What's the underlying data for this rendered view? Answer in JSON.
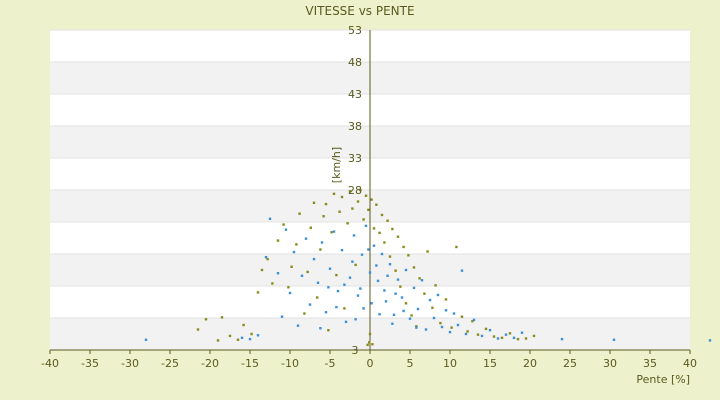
{
  "chart_data": {
    "type": "scatter",
    "title": "VITESSE vs PENTE",
    "xlabel": "Pente [%]",
    "ylabel": "[km/h]",
    "xlim": [
      -40,
      40
    ],
    "ylim": [
      3,
      53
    ],
    "xticks": [
      -40,
      -35,
      -30,
      -25,
      -20,
      -15,
      -10,
      -5,
      0,
      5,
      10,
      15,
      20,
      25,
      30,
      35,
      40
    ],
    "yticks": [
      3,
      8,
      13,
      18,
      23,
      28,
      33,
      38,
      43,
      48,
      53
    ],
    "ytick_labels": [
      "3",
      "",
      "",
      "",
      "",
      "28",
      "33",
      "38",
      "43",
      "48",
      "53"
    ],
    "grid": true,
    "legend": "none",
    "colors": {
      "background": "#eef2cc",
      "plot_background": "#ffffff",
      "band": "#f2f2f2",
      "axis": "#5a5a1e",
      "series_1": "#3b8fd8",
      "series_2": "#8a8a1a"
    },
    "series": [
      {
        "color": "#8a8a1a",
        "points": [
          [
            -21.5,
            6.2
          ],
          [
            -20.5,
            7.8
          ],
          [
            -19.0,
            4.5
          ],
          [
            -18.5,
            8.1
          ],
          [
            -17.5,
            5.2
          ],
          [
            -16.5,
            4.6
          ],
          [
            -15.8,
            6.9
          ],
          [
            -14.8,
            5.5
          ],
          [
            -14.0,
            12.0
          ],
          [
            -13.5,
            15.5
          ],
          [
            -12.8,
            17.2
          ],
          [
            -12.2,
            13.4
          ],
          [
            -11.5,
            20.1
          ],
          [
            -10.8,
            22.6
          ],
          [
            -10.2,
            12.8
          ],
          [
            -9.8,
            16.0
          ],
          [
            -9.2,
            19.5
          ],
          [
            -8.8,
            24.3
          ],
          [
            -8.2,
            8.7
          ],
          [
            -7.8,
            15.2
          ],
          [
            -7.4,
            22.1
          ],
          [
            -7.0,
            26.0
          ],
          [
            -6.6,
            11.2
          ],
          [
            -6.2,
            18.7
          ],
          [
            -5.8,
            23.9
          ],
          [
            -5.5,
            25.8
          ],
          [
            -5.2,
            6.1
          ],
          [
            -4.8,
            21.4
          ],
          [
            -4.5,
            27.4
          ],
          [
            -4.2,
            14.7
          ],
          [
            -3.8,
            24.6
          ],
          [
            -3.5,
            26.9
          ],
          [
            -3.2,
            9.5
          ],
          [
            -2.8,
            22.8
          ],
          [
            -2.5,
            27.8
          ],
          [
            -2.2,
            25.1
          ],
          [
            -1.8,
            16.3
          ],
          [
            -1.5,
            26.2
          ],
          [
            -1.2,
            28.0
          ],
          [
            -0.8,
            23.4
          ],
          [
            -0.5,
            27.1
          ],
          [
            -0.2,
            24.9
          ],
          [
            0.0,
            5.5
          ],
          [
            0.2,
            26.5
          ],
          [
            0.5,
            22.0
          ],
          [
            0.8,
            25.7
          ],
          [
            1.2,
            21.3
          ],
          [
            1.5,
            24.1
          ],
          [
            1.8,
            19.8
          ],
          [
            2.2,
            23.2
          ],
          [
            2.5,
            17.6
          ],
          [
            2.8,
            21.9
          ],
          [
            3.2,
            15.4
          ],
          [
            3.5,
            20.7
          ],
          [
            3.8,
            12.9
          ],
          [
            4.2,
            19.1
          ],
          [
            4.5,
            10.3
          ],
          [
            4.8,
            17.8
          ],
          [
            5.2,
            8.4
          ],
          [
            5.5,
            15.9
          ],
          [
            5.8,
            6.7
          ],
          [
            6.2,
            14.2
          ],
          [
            6.8,
            11.8
          ],
          [
            7.2,
            18.4
          ],
          [
            7.8,
            9.6
          ],
          [
            8.2,
            13.1
          ],
          [
            8.8,
            7.2
          ],
          [
            9.5,
            10.9
          ],
          [
            10.2,
            6.5
          ],
          [
            10.8,
            19.1
          ],
          [
            11.5,
            8.2
          ],
          [
            12.2,
            5.9
          ],
          [
            12.8,
            7.5
          ],
          [
            13.5,
            5.4
          ],
          [
            14.5,
            6.3
          ],
          [
            15.5,
            5.1
          ],
          [
            16.5,
            4.9
          ],
          [
            17.5,
            5.6
          ],
          [
            18.5,
            4.7
          ],
          [
            19.5,
            4.8
          ],
          [
            20.5,
            5.2
          ],
          [
            -0.3,
            3.8
          ],
          [
            0.3,
            3.9
          ],
          [
            -0.1,
            4.2
          ]
        ]
      },
      {
        "color": "#3b8fd8",
        "points": [
          [
            -28.0,
            4.6
          ],
          [
            -16.0,
            4.9
          ],
          [
            -15.0,
            4.7
          ],
          [
            -14.0,
            5.3
          ],
          [
            -13.0,
            17.5
          ],
          [
            -12.5,
            23.5
          ],
          [
            -11.5,
            15.0
          ],
          [
            -11.0,
            8.2
          ],
          [
            -10.5,
            21.8
          ],
          [
            -10.0,
            11.9
          ],
          [
            -9.5,
            18.3
          ],
          [
            -9.0,
            6.8
          ],
          [
            -8.5,
            14.6
          ],
          [
            -8.0,
            20.4
          ],
          [
            -7.5,
            10.1
          ],
          [
            -7.0,
            17.2
          ],
          [
            -6.5,
            13.5
          ],
          [
            -6.0,
            19.8
          ],
          [
            -5.5,
            8.9
          ],
          [
            -5.0,
            15.7
          ],
          [
            -4.5,
            21.5
          ],
          [
            -4.0,
            12.2
          ],
          [
            -3.5,
            18.6
          ],
          [
            -3.0,
            7.4
          ],
          [
            -2.5,
            14.3
          ],
          [
            -2.0,
            20.9
          ],
          [
            -1.5,
            11.5
          ],
          [
            -1.0,
            17.9
          ],
          [
            -0.5,
            22.4
          ],
          [
            0.0,
            15.1
          ],
          [
            0.5,
            19.3
          ],
          [
            1.0,
            13.8
          ],
          [
            1.5,
            18.0
          ],
          [
            2.0,
            10.6
          ],
          [
            2.5,
            16.4
          ],
          [
            3.0,
            8.5
          ],
          [
            3.5,
            14.0
          ],
          [
            4.0,
            11.2
          ],
          [
            4.5,
            15.5
          ],
          [
            5.0,
            7.9
          ],
          [
            5.5,
            12.7
          ],
          [
            6.0,
            9.4
          ],
          [
            6.5,
            13.9
          ],
          [
            7.0,
            6.2
          ],
          [
            7.5,
            10.8
          ],
          [
            8.0,
            8.0
          ],
          [
            8.5,
            11.6
          ],
          [
            9.0,
            6.6
          ],
          [
            9.5,
            9.2
          ],
          [
            10.0,
            5.8
          ],
          [
            10.5,
            8.7
          ],
          [
            11.0,
            6.9
          ],
          [
            11.5,
            15.4
          ],
          [
            12.0,
            5.5
          ],
          [
            13.0,
            7.7
          ],
          [
            14.0,
            5.2
          ],
          [
            15.0,
            6.1
          ],
          [
            16.0,
            4.8
          ],
          [
            17.0,
            5.4
          ],
          [
            18.0,
            4.9
          ],
          [
            19.0,
            5.7
          ],
          [
            24.0,
            4.7
          ],
          [
            30.5,
            4.6
          ],
          [
            42.5,
            4.5
          ],
          [
            -2.2,
            16.8
          ],
          [
            -1.2,
            12.6
          ],
          [
            -0.2,
            18.7
          ],
          [
            0.8,
            16.2
          ],
          [
            1.8,
            12.3
          ],
          [
            -3.2,
            13.2
          ],
          [
            2.2,
            14.6
          ],
          [
            -4.2,
            9.7
          ],
          [
            3.2,
            11.8
          ],
          [
            -5.2,
            12.8
          ],
          [
            4.2,
            9.1
          ],
          [
            0.2,
            10.3
          ],
          [
            -0.8,
            9.5
          ],
          [
            1.2,
            8.6
          ],
          [
            -1.8,
            7.8
          ],
          [
            2.8,
            7.1
          ],
          [
            -6.2,
            6.4
          ],
          [
            5.8,
            6.5
          ]
        ]
      }
    ]
  }
}
